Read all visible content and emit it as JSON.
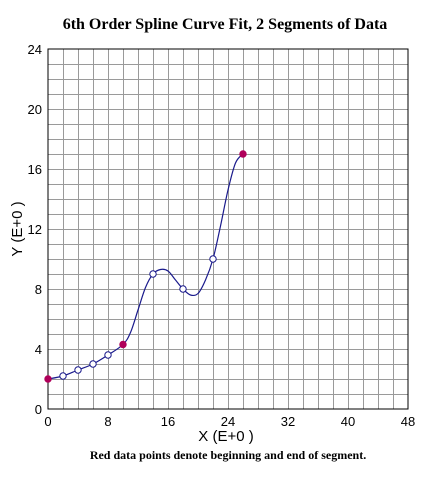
{
  "chart_data": {
    "type": "scatter",
    "title": "6th Order Spline Curve Fit, 2 Segments of Data",
    "xlabel": "X (E+0 )",
    "ylabel": "Y (E+0 )",
    "caption": "Red data points denote beginning and end of segment.",
    "xlim": [
      0,
      48
    ],
    "ylim": [
      0,
      24
    ],
    "x_ticks": [
      "0",
      "8",
      "16",
      "24",
      "32",
      "40",
      "48"
    ],
    "y_ticks": [
      "0",
      "4",
      "8",
      "12",
      "16",
      "20",
      "24"
    ],
    "grid": true,
    "points": [
      {
        "x": 0,
        "y": 2.0,
        "endpoint": true
      },
      {
        "x": 2,
        "y": 2.2,
        "endpoint": false
      },
      {
        "x": 4,
        "y": 2.6,
        "endpoint": false
      },
      {
        "x": 6,
        "y": 3.0,
        "endpoint": false
      },
      {
        "x": 8,
        "y": 3.6,
        "endpoint": false
      },
      {
        "x": 10,
        "y": 4.3,
        "endpoint": true
      },
      {
        "x": 14,
        "y": 9.0,
        "endpoint": false
      },
      {
        "x": 18,
        "y": 8.0,
        "endpoint": false
      },
      {
        "x": 22,
        "y": 10.0,
        "endpoint": false
      },
      {
        "x": 26,
        "y": 17.0,
        "endpoint": true
      }
    ],
    "curve": [
      [
        0,
        2.0
      ],
      [
        2,
        2.2
      ],
      [
        4,
        2.6
      ],
      [
        6,
        3.0
      ],
      [
        8,
        3.6
      ],
      [
        10,
        4.3
      ],
      [
        11,
        5.1
      ],
      [
        12,
        6.6
      ],
      [
        13,
        8.1
      ],
      [
        14,
        9.0
      ],
      [
        15,
        9.3
      ],
      [
        16,
        9.2
      ],
      [
        17,
        8.6
      ],
      [
        18,
        8.0
      ],
      [
        19,
        7.6
      ],
      [
        20,
        7.7
      ],
      [
        21,
        8.6
      ],
      [
        22,
        10.0
      ],
      [
        23,
        12.2
      ],
      [
        24,
        14.6
      ],
      [
        25,
        16.4
      ],
      [
        26,
        17.0
      ]
    ],
    "colors": {
      "endpoint_fill": "#b0005a",
      "point_fill": "#ffffff",
      "point_stroke": "#1a1a8c",
      "curve": "#1a1a8c",
      "grid": "#9a9a9a"
    }
  }
}
